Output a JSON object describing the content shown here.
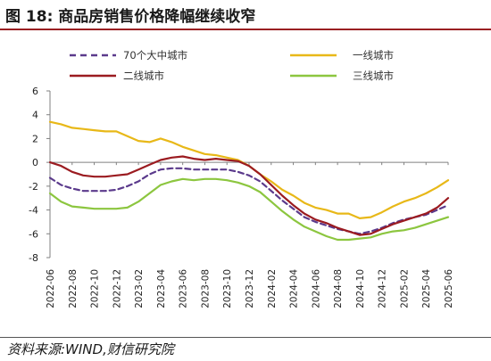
{
  "title": "图 18:  商品房销售价格降幅继续收窄",
  "source": "资料来源:WIND,财信研究院",
  "colors": {
    "title_rule": "#9a1f22"
  },
  "chart_data": {
    "type": "line",
    "title": "商品房销售价格降幅继续收窄",
    "xlabel": "",
    "ylabel": "",
    "ylim": [
      -8,
      6
    ],
    "yticks": [
      -8,
      -6,
      -4,
      -2,
      0,
      2,
      4,
      6
    ],
    "grid": false,
    "legend_position": "top",
    "x": [
      "2022-06",
      "2022-07",
      "2022-08",
      "2022-09",
      "2022-10",
      "2022-11",
      "2022-12",
      "2023-01",
      "2023-02",
      "2023-03",
      "2023-04",
      "2023-05",
      "2023-06",
      "2023-07",
      "2023-08",
      "2023-09",
      "2023-10",
      "2023-11",
      "2023-12",
      "2024-01",
      "2024-02",
      "2024-03",
      "2024-04",
      "2024-05",
      "2024-06",
      "2024-07",
      "2024-08",
      "2024-09",
      "2024-10",
      "2024-11",
      "2024-12",
      "2025-01",
      "2025-02",
      "2025-03",
      "2025-04",
      "2025-05",
      "2025-06"
    ],
    "xtick_labels": [
      "2022-06",
      "2022-08",
      "2022-10",
      "2022-12",
      "2023-02",
      "2023-04",
      "2023-06",
      "2023-08",
      "2023-10",
      "2023-12",
      "2024-02",
      "2024-04",
      "2024-06",
      "2024-08",
      "2024-10",
      "2024-12",
      "2025-02",
      "2025-04",
      "2025-06"
    ],
    "series": [
      {
        "name": "70个大中城市",
        "color": "#5b3a8c",
        "dash": true,
        "values": [
          -1.3,
          -1.9,
          -2.2,
          -2.4,
          -2.4,
          -2.4,
          -2.3,
          -2.0,
          -1.6,
          -1.0,
          -0.6,
          -0.5,
          -0.5,
          -0.6,
          -0.6,
          -0.6,
          -0.6,
          -0.8,
          -1.1,
          -1.6,
          -2.4,
          -3.2,
          -3.9,
          -4.6,
          -5.0,
          -5.3,
          -5.6,
          -5.8,
          -6.0,
          -5.8,
          -5.5,
          -5.1,
          -4.8,
          -4.6,
          -4.4,
          -4.0,
          -3.6
        ]
      },
      {
        "name": "一线城市",
        "color": "#e8b818",
        "dash": false,
        "values": [
          3.4,
          3.2,
          2.9,
          2.8,
          2.7,
          2.6,
          2.6,
          2.2,
          1.8,
          1.7,
          2.0,
          1.7,
          1.3,
          1.0,
          0.7,
          0.6,
          0.4,
          0.2,
          -0.3,
          -1.0,
          -1.6,
          -2.3,
          -2.8,
          -3.4,
          -3.8,
          -4.0,
          -4.3,
          -4.3,
          -4.7,
          -4.6,
          -4.2,
          -3.7,
          -3.3,
          -3.0,
          -2.6,
          -2.1,
          -1.5
        ]
      },
      {
        "name": "二线城市",
        "color": "#9b1b20",
        "dash": false,
        "values": [
          0,
          -0.3,
          -0.8,
          -1.1,
          -1.2,
          -1.2,
          -1.1,
          -1.0,
          -0.6,
          -0.2,
          0.2,
          0.4,
          0.5,
          0.3,
          0.2,
          0.3,
          0.2,
          0.1,
          -0.3,
          -1.0,
          -1.9,
          -2.8,
          -3.6,
          -4.3,
          -4.8,
          -5.1,
          -5.5,
          -5.8,
          -6.1,
          -6.0,
          -5.6,
          -5.2,
          -4.9,
          -4.6,
          -4.3,
          -3.8,
          -3.0
        ]
      },
      {
        "name": "三线城市",
        "color": "#8cc63f",
        "dash": false,
        "values": [
          -2.6,
          -3.3,
          -3.7,
          -3.8,
          -3.9,
          -3.9,
          -3.9,
          -3.8,
          -3.3,
          -2.6,
          -1.9,
          -1.6,
          -1.4,
          -1.5,
          -1.4,
          -1.4,
          -1.5,
          -1.7,
          -2.0,
          -2.5,
          -3.3,
          -4.1,
          -4.8,
          -5.4,
          -5.8,
          -6.2,
          -6.5,
          -6.5,
          -6.4,
          -6.3,
          -6.0,
          -5.8,
          -5.7,
          -5.5,
          -5.2,
          -4.9,
          -4.6
        ]
      }
    ]
  }
}
